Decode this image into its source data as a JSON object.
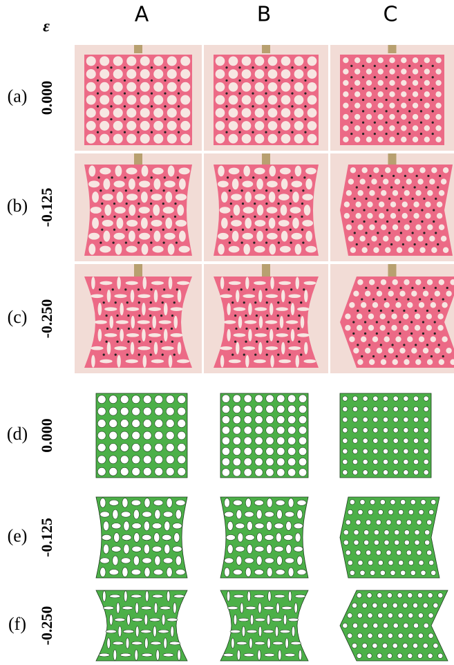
{
  "header": {
    "epsilon": "ε",
    "columns": [
      "A",
      "B",
      "C"
    ]
  },
  "rows": [
    {
      "label": "(a)",
      "strain": "0.000"
    },
    {
      "label": "(b)",
      "strain": "-0.125"
    },
    {
      "label": "(c)",
      "strain": "-0.250"
    },
    {
      "label": "(d)",
      "strain": "0.000"
    },
    {
      "label": "(e)",
      "strain": "-0.125"
    },
    {
      "label": "(f)",
      "strain": "-0.250"
    }
  ]
}
